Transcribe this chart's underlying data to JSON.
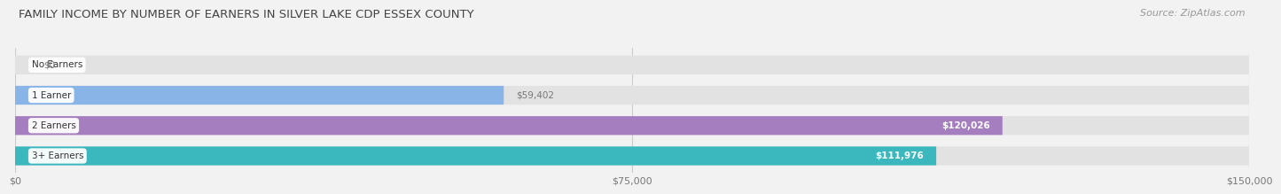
{
  "title": "FAMILY INCOME BY NUMBER OF EARNERS IN SILVER LAKE CDP ESSEX COUNTY",
  "source": "Source: ZipAtlas.com",
  "categories": [
    "No Earners",
    "1 Earner",
    "2 Earners",
    "3+ Earners"
  ],
  "values": [
    0,
    59402,
    120026,
    111976
  ],
  "bar_colors": [
    "#e8939b",
    "#89b4e8",
    "#a57ec0",
    "#3ab8be"
  ],
  "label_colors": [
    "#888888",
    "#888888",
    "#ffffff",
    "#ffffff"
  ],
  "xlim": [
    0,
    150000
  ],
  "xticks": [
    0,
    75000,
    150000
  ],
  "xtick_labels": [
    "$0",
    "$75,000",
    "$150,000"
  ],
  "background_color": "#f2f2f2",
  "bar_bg_color": "#e2e2e2",
  "title_fontsize": 9.5,
  "source_fontsize": 8,
  "bar_height": 0.62,
  "value_labels": [
    "$0",
    "$59,402",
    "$120,026",
    "$111,976"
  ]
}
